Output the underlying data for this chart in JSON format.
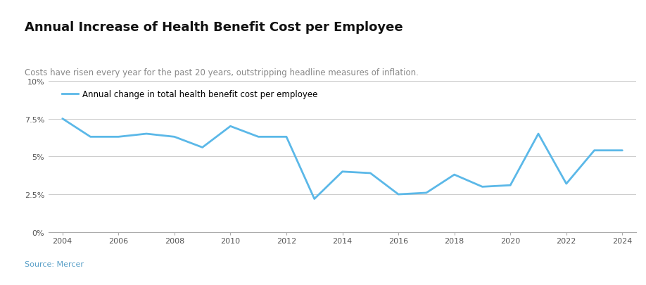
{
  "title": "Annual Increase of Health Benefit Cost per Employee",
  "subtitle": "Costs have risen every year for the past 20 years, outstripping headline measures of inflation.",
  "source": "Source: Mercer",
  "legend_label": "Annual change in total health benefit cost per employee",
  "line_color": "#5bb8e8",
  "line_width": 2.0,
  "years": [
    2004,
    2005,
    2006,
    2007,
    2008,
    2009,
    2010,
    2011,
    2012,
    2013,
    2014,
    2015,
    2016,
    2017,
    2018,
    2019,
    2020,
    2021,
    2022,
    2023,
    2024
  ],
  "values": [
    0.075,
    0.063,
    0.063,
    0.065,
    0.063,
    0.056,
    0.07,
    0.063,
    0.063,
    0.022,
    0.04,
    0.039,
    0.025,
    0.026,
    0.038,
    0.03,
    0.031,
    0.065,
    0.032,
    0.054,
    0.054
  ],
  "ylim": [
    0,
    0.1
  ],
  "yticks": [
    0,
    0.025,
    0.05,
    0.075,
    0.1
  ],
  "ytick_labels": [
    "0%",
    "2.5%",
    "5%",
    "7.5%",
    "10%"
  ],
  "xlim": [
    2003.5,
    2024.5
  ],
  "xticks": [
    2004,
    2006,
    2008,
    2010,
    2012,
    2014,
    2016,
    2018,
    2020,
    2022,
    2024
  ],
  "background_color": "#ffffff",
  "grid_color": "#cccccc",
  "title_color": "#111111",
  "subtitle_color": "#888888",
  "source_color": "#5aa0c8",
  "top_bar_color": "#8dc04a",
  "bottom_bar_color": "#8dc04a",
  "title_fontsize": 13,
  "subtitle_fontsize": 8.5,
  "source_fontsize": 8,
  "legend_fontsize": 8.5,
  "tick_fontsize": 8
}
